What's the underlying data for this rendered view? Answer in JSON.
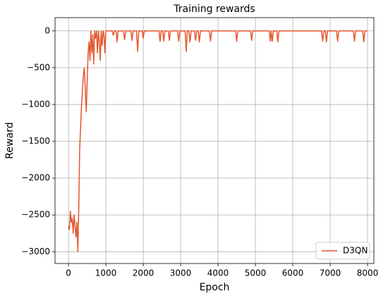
{
  "chart_data": {
    "type": "line",
    "title": "Training rewards",
    "x_label": "Epoch",
    "y_label": "Reward",
    "x": [
      0,
      25,
      50,
      75,
      100,
      125,
      150,
      175,
      200,
      225,
      250,
      275,
      300,
      325,
      350,
      375,
      400,
      425,
      450,
      475,
      500,
      525,
      550,
      575,
      600,
      625,
      650,
      675,
      700,
      725,
      750,
      775,
      800,
      825,
      850,
      875,
      900,
      925,
      950,
      975,
      1000,
      1100,
      1170,
      1200,
      1230,
      1270,
      1300,
      1330,
      1470,
      1500,
      1530,
      1670,
      1700,
      1730,
      1820,
      1850,
      1880,
      1970,
      2000,
      2030,
      2420,
      2450,
      2480,
      2520,
      2550,
      2580,
      2670,
      2700,
      2730,
      2920,
      2950,
      2980,
      3120,
      3150,
      3180,
      3220,
      3250,
      3280,
      3370,
      3400,
      3430,
      3470,
      3500,
      3530,
      3770,
      3800,
      3830,
      4470,
      4500,
      4530,
      4870,
      4900,
      4930,
      5370,
      5400,
      5420,
      5450,
      5480,
      5570,
      5600,
      5630,
      6770,
      6800,
      6830,
      6870,
      6900,
      6930,
      7170,
      7200,
      7230,
      7620,
      7650,
      7680,
      7870,
      7900,
      7930,
      8000
    ],
    "series": [
      {
        "name": "D3QN",
        "color": "#e4572e",
        "values": [
          -2650,
          -2700,
          -2450,
          -2600,
          -2550,
          -2750,
          -2500,
          -2650,
          -2800,
          -2600,
          -3000,
          -2400,
          -1600,
          -1300,
          -1000,
          -800,
          -600,
          -500,
          -800,
          -1100,
          -700,
          -300,
          -150,
          -400,
          0,
          -300,
          -50,
          -450,
          0,
          -100,
          0,
          -300,
          0,
          -150,
          -400,
          0,
          -200,
          0,
          -50,
          -300,
          0,
          0,
          0,
          -60,
          0,
          0,
          -150,
          0,
          0,
          -120,
          0,
          0,
          -130,
          0,
          0,
          -280,
          0,
          0,
          -100,
          0,
          0,
          -140,
          0,
          0,
          -140,
          0,
          0,
          -130,
          0,
          0,
          -140,
          0,
          0,
          -280,
          0,
          0,
          -150,
          0,
          0,
          -130,
          0,
          0,
          -150,
          0,
          0,
          -140,
          0,
          0,
          -140,
          0,
          0,
          -130,
          0,
          0,
          -140,
          0,
          -140,
          0,
          0,
          -150,
          0,
          0,
          -140,
          0,
          0,
          -150,
          0,
          0,
          -140,
          0,
          0,
          -140,
          0,
          0,
          -150,
          0,
          0
        ]
      }
    ],
    "xlim": [
      -360,
      8170
    ],
    "ylim": [
      -3160,
      180
    ],
    "xticks": [
      0,
      1000,
      2000,
      3000,
      4000,
      5000,
      6000,
      7000,
      8000
    ],
    "yticks": [
      0,
      {
        "value": -500,
        "label": "−500"
      },
      {
        "value": -1000,
        "label": "−1000"
      },
      {
        "value": -1500,
        "label": "−1500"
      },
      {
        "value": -2000,
        "label": "−2000"
      },
      {
        "value": -2500,
        "label": "−2500"
      },
      {
        "value": -3000,
        "label": "−3000"
      }
    ],
    "grid": true,
    "legend": "lower right"
  }
}
